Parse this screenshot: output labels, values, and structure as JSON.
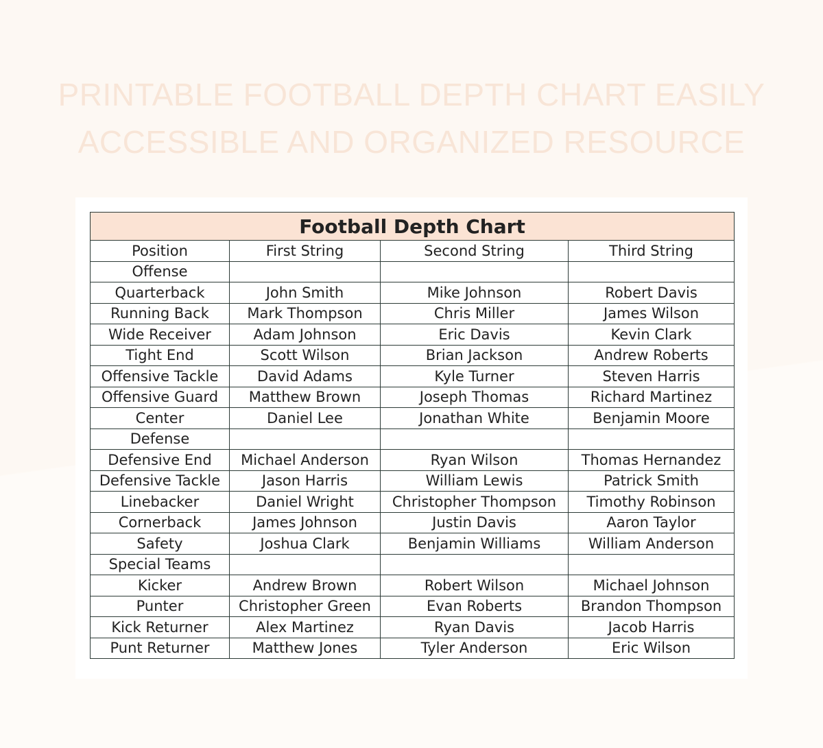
{
  "page_title_lines": [
    "PRINTABLE FOOTBALL DEPTH CHART EASILY",
    "ACCESSIBLE AND ORGANIZED RESOURCE"
  ],
  "table": {
    "title": "Football Depth Chart",
    "headers": [
      "Position",
      "First String",
      "Second String",
      "Third String"
    ],
    "rows": [
      [
        "Offense",
        "",
        "",
        ""
      ],
      [
        "Quarterback",
        "John Smith",
        "Mike Johnson",
        "Robert Davis"
      ],
      [
        "Running Back",
        "Mark Thompson",
        "Chris Miller",
        "James Wilson"
      ],
      [
        "Wide Receiver",
        "Adam Johnson",
        "Eric Davis",
        "Kevin Clark"
      ],
      [
        "Tight End",
        "Scott Wilson",
        "Brian Jackson",
        "Andrew Roberts"
      ],
      [
        "Offensive Tackle",
        "David Adams",
        "Kyle Turner",
        "Steven Harris"
      ],
      [
        "Offensive Guard",
        "Matthew Brown",
        "Joseph Thomas",
        "Richard Martinez"
      ],
      [
        "Center",
        "Daniel Lee",
        "Jonathan White",
        "Benjamin Moore"
      ],
      [
        "Defense",
        "",
        "",
        ""
      ],
      [
        "Defensive End",
        "Michael Anderson",
        "Ryan Wilson",
        "Thomas Hernandez"
      ],
      [
        "Defensive Tackle",
        "Jason Harris",
        "William Lewis",
        "Patrick Smith"
      ],
      [
        "Linebacker",
        "Daniel Wright",
        "Christopher Thompson",
        "Timothy Robinson"
      ],
      [
        "Cornerback",
        "James Johnson",
        "Justin Davis",
        "Aaron Taylor"
      ],
      [
        "Safety",
        "Joshua Clark",
        "Benjamin Williams",
        "William Anderson"
      ],
      [
        "Special Teams",
        "",
        "",
        ""
      ],
      [
        "Kicker",
        "Andrew Brown",
        "Robert Wilson",
        "Michael Johnson"
      ],
      [
        "Punter",
        "Christopher Green",
        "Evan Roberts",
        "Brandon Thompson"
      ],
      [
        "Kick Returner",
        "Alex Martinez",
        "Ryan Davis",
        "Jacob Harris"
      ],
      [
        "Punt Returner",
        "Matthew Jones",
        "Tyler Anderson",
        "Eric Wilson"
      ]
    ]
  },
  "colors": {
    "title_fill": "#fbe3d4",
    "page_title": "#f8e5d7",
    "border": "#2c3a36"
  }
}
